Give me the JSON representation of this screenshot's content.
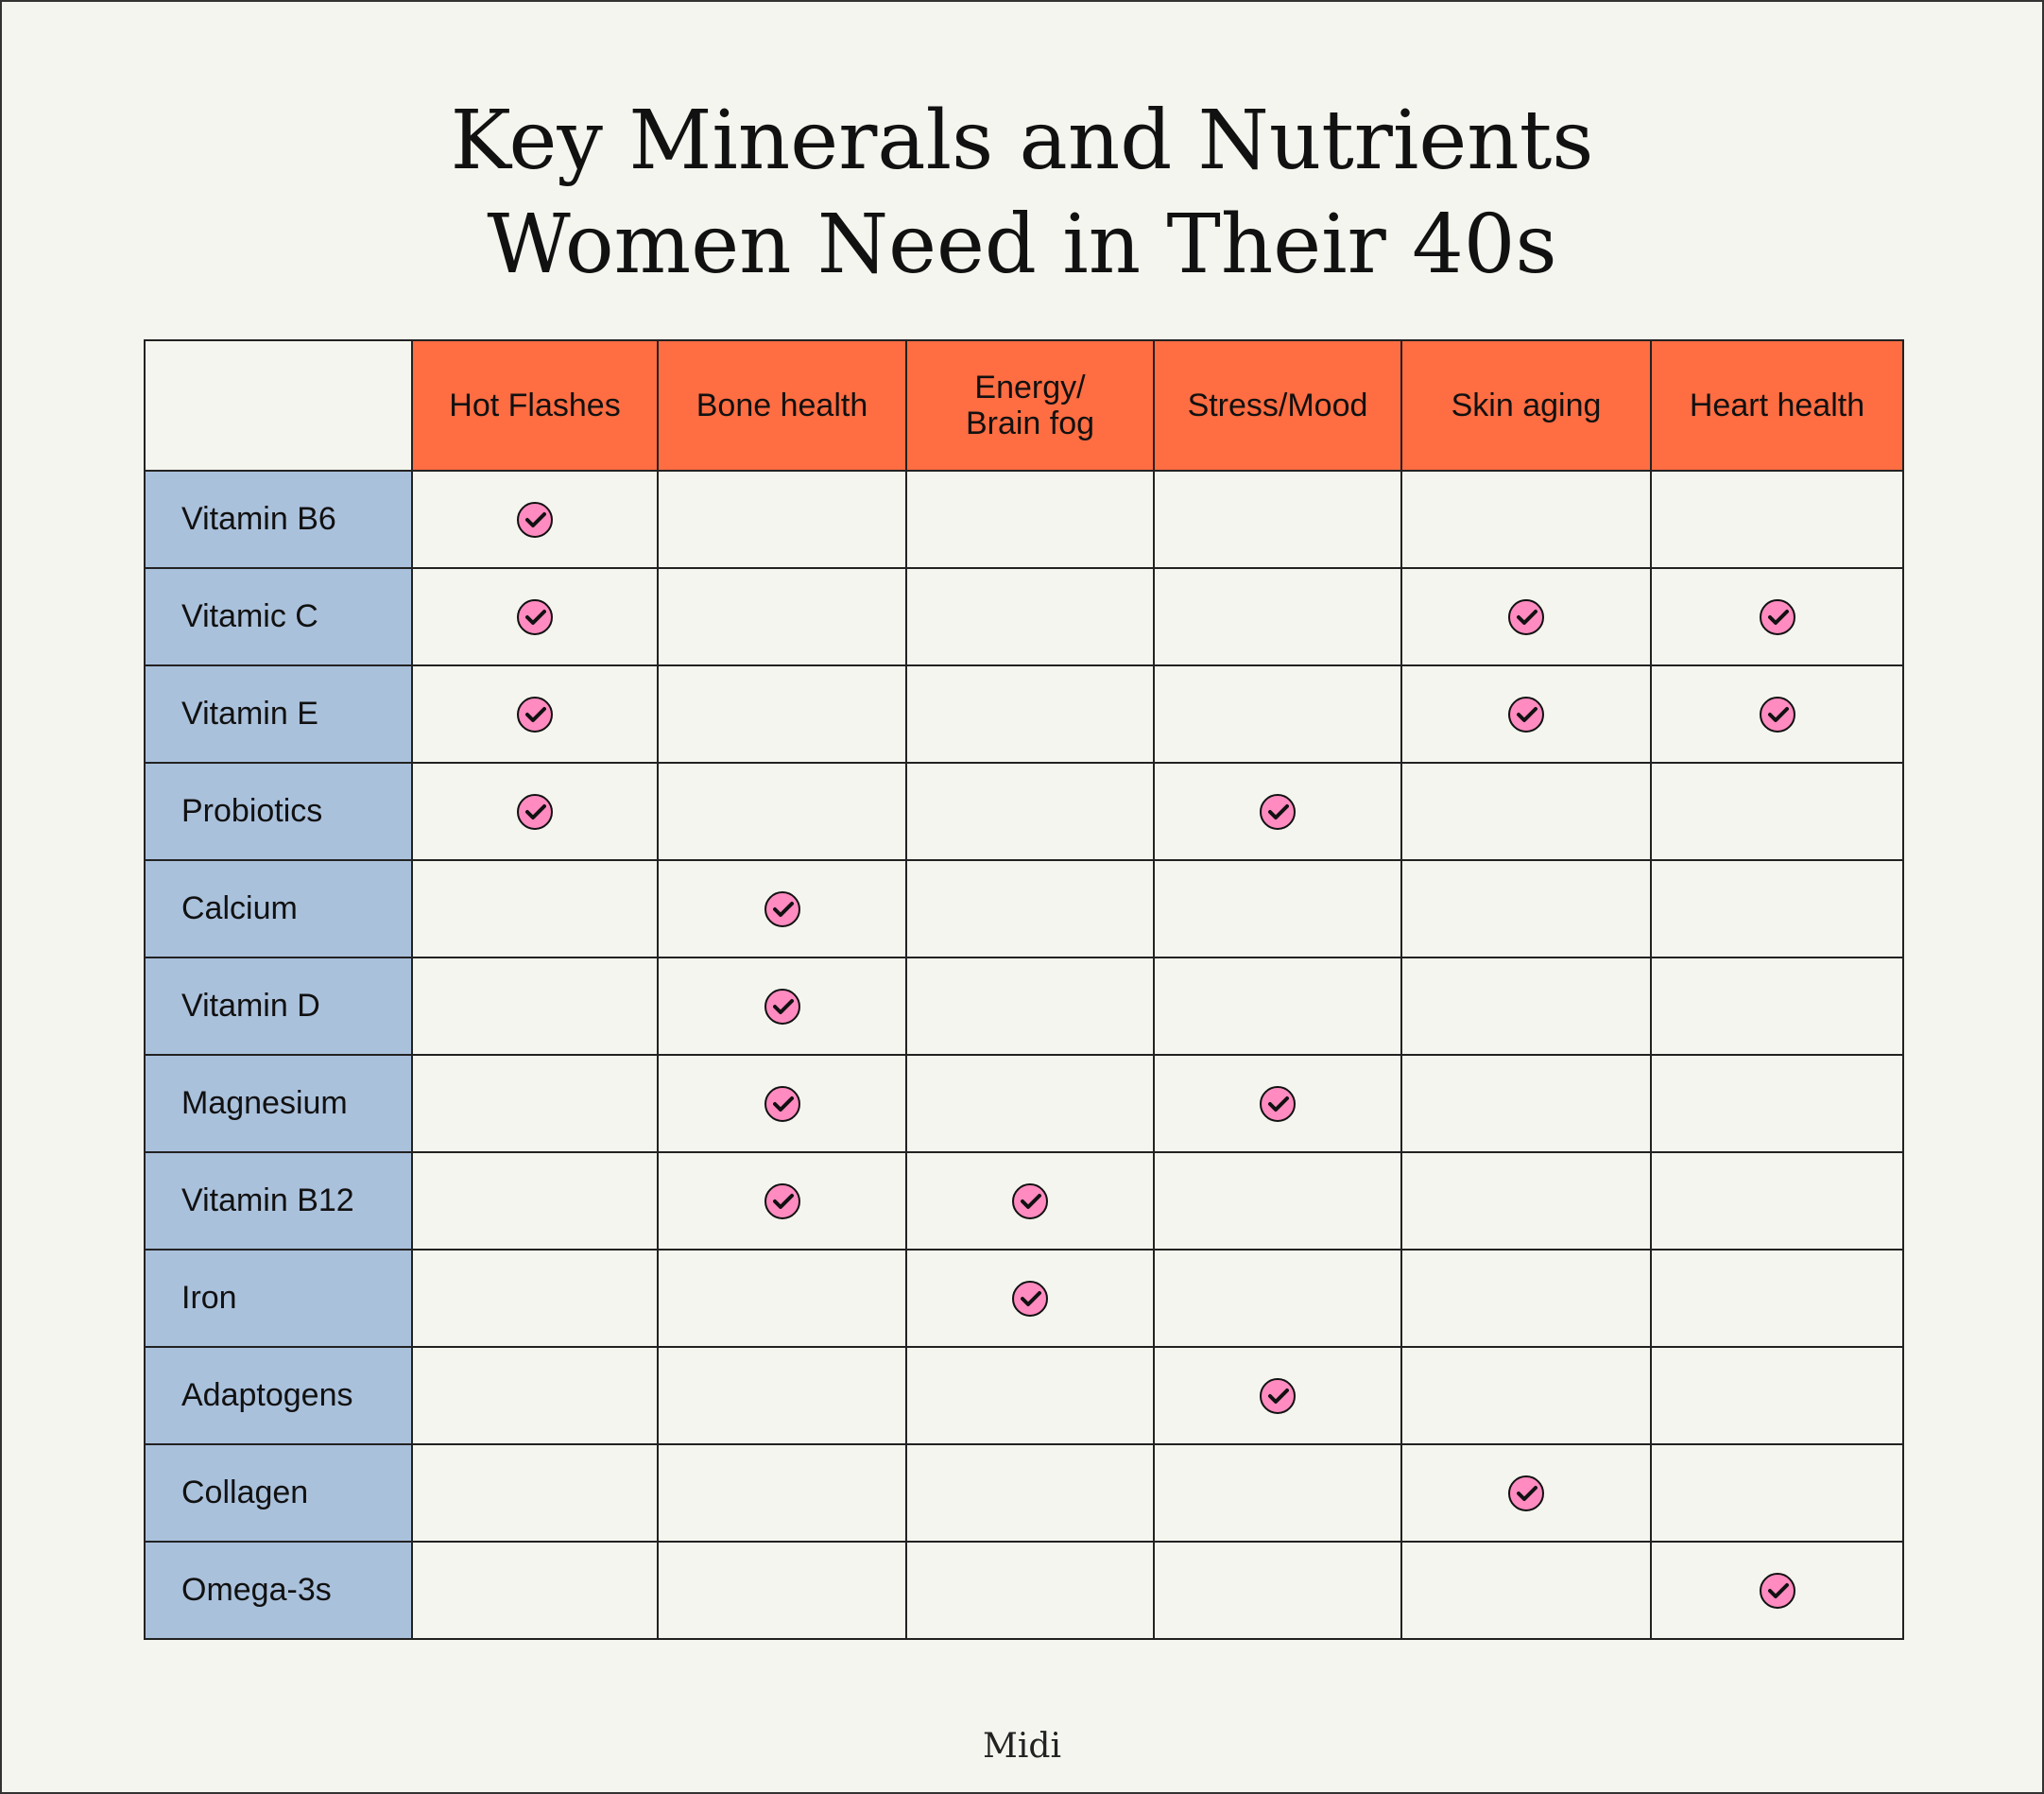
{
  "title": {
    "line1": "Key Minerals and Nutrients",
    "line2": "Women Need in Their 40s"
  },
  "columns": [
    "Hot Flashes",
    "Bone health",
    "Energy/\nBrain fog",
    "Stress/Mood",
    "Skin aging",
    "Heart health"
  ],
  "rows": [
    {
      "label": "Vitamin B6",
      "checks": [
        1,
        0,
        0,
        0,
        0,
        0
      ]
    },
    {
      "label": "Vitamic C",
      "checks": [
        1,
        0,
        0,
        0,
        1,
        1
      ]
    },
    {
      "label": "Vitamin E",
      "checks": [
        1,
        0,
        0,
        0,
        1,
        1
      ]
    },
    {
      "label": "Probiotics",
      "checks": [
        1,
        0,
        0,
        1,
        0,
        0
      ]
    },
    {
      "label": "Calcium",
      "checks": [
        0,
        1,
        0,
        0,
        0,
        0
      ]
    },
    {
      "label": "Vitamin D",
      "checks": [
        0,
        1,
        0,
        0,
        0,
        0
      ]
    },
    {
      "label": "Magnesium",
      "checks": [
        0,
        1,
        0,
        1,
        0,
        0
      ]
    },
    {
      "label": "Vitamin B12",
      "checks": [
        0,
        1,
        1,
        0,
        0,
        0
      ]
    },
    {
      "label": "Iron",
      "checks": [
        0,
        0,
        1,
        0,
        0,
        0
      ]
    },
    {
      "label": "Adaptogens",
      "checks": [
        0,
        0,
        0,
        1,
        0,
        0
      ]
    },
    {
      "label": "Collagen",
      "checks": [
        0,
        0,
        0,
        0,
        1,
        0
      ]
    },
    {
      "label": "Omega-3s",
      "checks": [
        0,
        0,
        0,
        0,
        0,
        1
      ]
    }
  ],
  "brand": "Midi",
  "colors": {
    "header": "#ff6d42",
    "row_label": "#aac1dc",
    "check": "#ff8bc0",
    "background": "#f4f5ee"
  },
  "icons": {
    "check": "check-circle-icon"
  }
}
